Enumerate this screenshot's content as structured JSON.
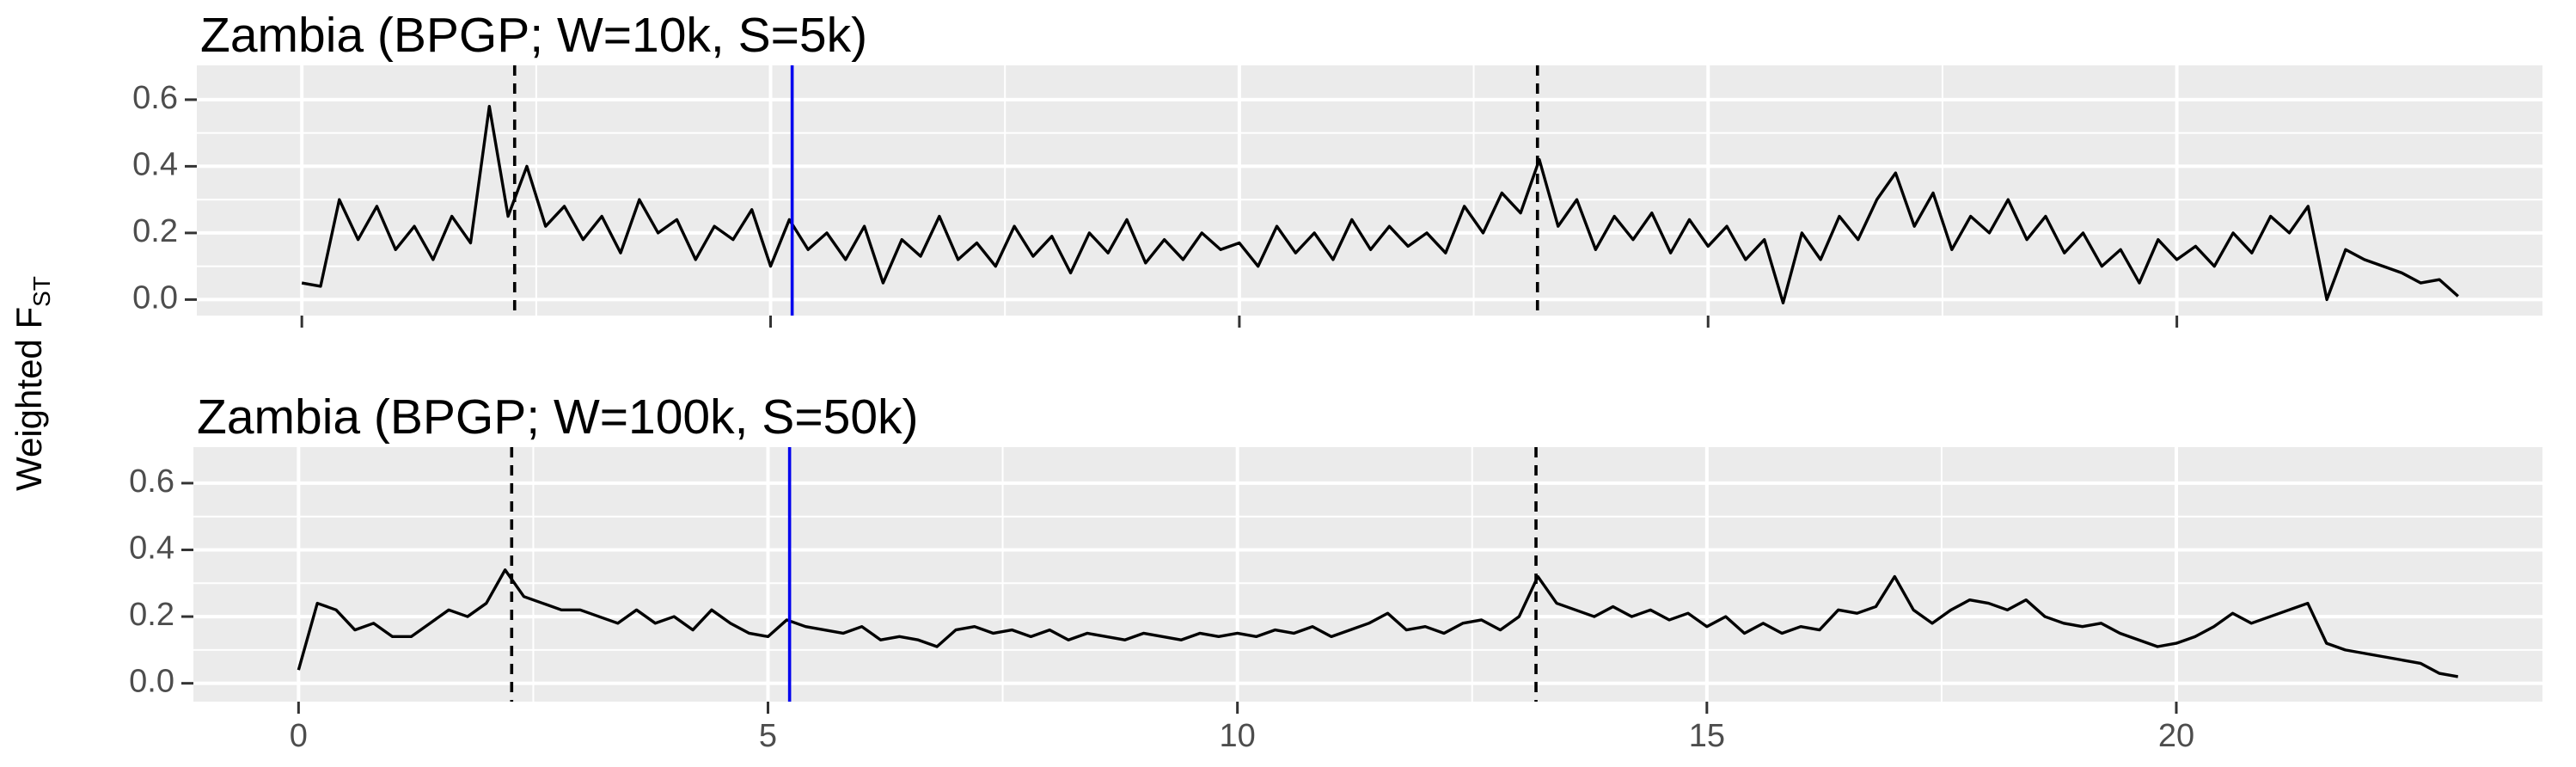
{
  "y_label": {
    "text": "Weighted F",
    "subscript": "ST"
  },
  "chart_data": [
    {
      "type": "line",
      "title": "Zambia (BPGP; W=10k, S=5k)",
      "x": [
        0,
        0.2,
        0.4,
        0.6,
        0.8,
        1,
        1.2,
        1.4,
        1.6,
        1.8,
        2,
        2.2,
        2.4,
        2.6,
        2.8,
        3,
        3.2,
        3.4,
        3.6,
        3.8,
        4,
        4.2,
        4.4,
        4.6,
        4.8,
        5,
        5.2,
        5.4,
        5.6,
        5.8,
        6,
        6.2,
        6.4,
        6.6,
        6.8,
        7,
        7.2,
        7.4,
        7.6,
        7.8,
        8,
        8.2,
        8.4,
        8.6,
        8.8,
        9,
        9.2,
        9.4,
        9.6,
        9.8,
        10,
        10.2,
        10.4,
        10.6,
        10.8,
        11,
        11.2,
        11.4,
        11.6,
        11.8,
        12,
        12.2,
        12.4,
        12.6,
        12.8,
        13,
        13.2,
        13.4,
        13.6,
        13.8,
        14,
        14.2,
        14.4,
        14.6,
        14.8,
        15,
        15.2,
        15.4,
        15.6,
        15.8,
        16,
        16.2,
        16.4,
        16.6,
        16.8,
        17,
        17.2,
        17.4,
        17.6,
        17.8,
        18,
        18.2,
        18.4,
        18.6,
        18.8,
        19,
        19.2,
        19.4,
        19.6,
        19.8,
        20,
        20.2,
        20.4,
        20.6,
        20.8,
        21,
        21.2,
        21.4,
        21.6,
        21.8,
        22,
        22.2,
        22.4,
        22.6,
        22.8,
        23
      ],
      "values": [
        0.05,
        0.04,
        0.3,
        0.18,
        0.28,
        0.15,
        0.22,
        0.12,
        0.25,
        0.17,
        0.58,
        0.25,
        0.4,
        0.22,
        0.28,
        0.18,
        0.25,
        0.14,
        0.3,
        0.2,
        0.24,
        0.12,
        0.22,
        0.18,
        0.27,
        0.1,
        0.24,
        0.15,
        0.2,
        0.12,
        0.22,
        0.05,
        0.18,
        0.13,
        0.25,
        0.12,
        0.17,
        0.1,
        0.22,
        0.13,
        0.19,
        0.08,
        0.2,
        0.14,
        0.24,
        0.11,
        0.18,
        0.12,
        0.2,
        0.15,
        0.17,
        0.1,
        0.22,
        0.14,
        0.2,
        0.12,
        0.24,
        0.15,
        0.22,
        0.16,
        0.2,
        0.14,
        0.28,
        0.2,
        0.32,
        0.26,
        0.42,
        0.22,
        0.3,
        0.15,
        0.25,
        0.18,
        0.26,
        0.14,
        0.24,
        0.16,
        0.22,
        0.12,
        0.18,
        -0.01,
        0.2,
        0.12,
        0.25,
        0.18,
        0.3,
        0.38,
        0.22,
        0.32,
        0.15,
        0.25,
        0.2,
        0.3,
        0.18,
        0.25,
        0.14,
        0.2,
        0.1,
        0.15,
        0.05,
        0.18,
        0.12,
        0.16,
        0.1,
        0.2,
        0.14,
        0.25,
        0.2,
        0.28,
        0.0,
        0.15,
        0.12,
        0.1,
        0.08,
        0.05,
        0.06,
        0.01
      ],
      "color": "#000000",
      "vlines": [
        {
          "x": 2.27,
          "style": "dashed",
          "color": "#000000"
        },
        {
          "x": 5.23,
          "style": "solid",
          "color": "#0000ee"
        },
        {
          "x": 13.18,
          "style": "dashed",
          "color": "#000000"
        }
      ],
      "xlim": [
        -1.12,
        23.9
      ],
      "xticks": [
        0,
        5,
        10,
        15,
        20
      ],
      "show_xtick_labels": false,
      "ylim": [
        -0.048,
        0.703
      ],
      "yticks": [
        {
          "value": 0,
          "label": "0.0"
        },
        0.2,
        0.4,
        0.6
      ],
      "grid": true
    },
    {
      "type": "line",
      "title": "Zambia (BPGP; W=100k, S=50k)",
      "x": [
        0,
        0.2,
        0.4,
        0.6,
        0.8,
        1,
        1.2,
        1.4,
        1.6,
        1.8,
        2,
        2.2,
        2.4,
        2.6,
        2.8,
        3,
        3.2,
        3.4,
        3.6,
        3.8,
        4,
        4.2,
        4.4,
        4.6,
        4.8,
        5,
        5.2,
        5.4,
        5.6,
        5.8,
        6,
        6.2,
        6.4,
        6.6,
        6.8,
        7,
        7.2,
        7.4,
        7.6,
        7.8,
        8,
        8.2,
        8.4,
        8.6,
        8.8,
        9,
        9.2,
        9.4,
        9.6,
        9.8,
        10,
        10.2,
        10.4,
        10.6,
        10.8,
        11,
        11.2,
        11.4,
        11.6,
        11.8,
        12,
        12.2,
        12.4,
        12.6,
        12.8,
        13,
        13.2,
        13.4,
        13.6,
        13.8,
        14,
        14.2,
        14.4,
        14.6,
        14.8,
        15,
        15.2,
        15.4,
        15.6,
        15.8,
        16,
        16.2,
        16.4,
        16.6,
        16.8,
        17,
        17.2,
        17.4,
        17.6,
        17.8,
        18,
        18.2,
        18.4,
        18.6,
        18.8,
        19,
        19.2,
        19.4,
        19.6,
        19.8,
        20,
        20.2,
        20.4,
        20.6,
        20.8,
        21,
        21.2,
        21.4,
        21.6,
        21.8,
        22,
        22.2,
        22.4,
        22.6,
        22.8,
        23
      ],
      "values": [
        0.04,
        0.24,
        0.22,
        0.16,
        0.18,
        0.14,
        0.14,
        0.18,
        0.22,
        0.2,
        0.24,
        0.34,
        0.26,
        0.24,
        0.22,
        0.22,
        0.2,
        0.18,
        0.22,
        0.18,
        0.2,
        0.16,
        0.22,
        0.18,
        0.15,
        0.14,
        0.19,
        0.17,
        0.16,
        0.15,
        0.17,
        0.13,
        0.14,
        0.13,
        0.11,
        0.16,
        0.17,
        0.15,
        0.16,
        0.14,
        0.16,
        0.13,
        0.15,
        0.14,
        0.13,
        0.15,
        0.14,
        0.13,
        0.15,
        0.14,
        0.15,
        0.14,
        0.16,
        0.15,
        0.17,
        0.14,
        0.16,
        0.18,
        0.21,
        0.16,
        0.17,
        0.15,
        0.18,
        0.19,
        0.16,
        0.2,
        0.32,
        0.24,
        0.22,
        0.2,
        0.23,
        0.2,
        0.22,
        0.19,
        0.21,
        0.17,
        0.2,
        0.15,
        0.18,
        0.15,
        0.17,
        0.16,
        0.22,
        0.21,
        0.23,
        0.32,
        0.22,
        0.18,
        0.22,
        0.25,
        0.24,
        0.22,
        0.25,
        0.2,
        0.18,
        0.17,
        0.18,
        0.15,
        0.13,
        0.11,
        0.12,
        0.14,
        0.17,
        0.21,
        0.18,
        0.2,
        0.22,
        0.24,
        0.12,
        0.1,
        0.09,
        0.08,
        0.07,
        0.06,
        0.03,
        0.02
      ],
      "color": "#000000",
      "vlines": [
        {
          "x": 2.27,
          "style": "dashed",
          "color": "#000000"
        },
        {
          "x": 5.23,
          "style": "solid",
          "color": "#0000ee"
        },
        {
          "x": 13.18,
          "style": "dashed",
          "color": "#000000"
        }
      ],
      "xlim": [
        -1.12,
        23.9
      ],
      "xticks": [
        0,
        5,
        10,
        15,
        20
      ],
      "show_xtick_labels": true,
      "ylim": [
        -0.055,
        0.708
      ],
      "yticks": [
        {
          "value": 0,
          "label": "0.0"
        },
        0.2,
        0.4,
        0.6
      ],
      "grid": true
    }
  ]
}
